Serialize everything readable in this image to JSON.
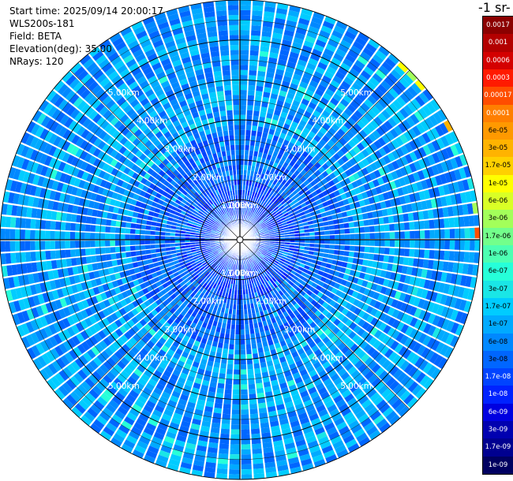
{
  "info": {
    "start_time": "Start time: 2025/09/14 20:00:17",
    "instrument": "WLS200s-181",
    "field": "Field: BETA",
    "elevation": "Elevation(deg): 35.00",
    "nrays": "NRays: 120"
  },
  "colorbar": {
    "title": "-1 sr-",
    "labels": [
      "0.0017",
      "0.001",
      "0.0006",
      "0.0003",
      "0.00017",
      "0.0001",
      "6e-05",
      "3e-05",
      "1.7e-05",
      "1e-05",
      "6e-06",
      "3e-06",
      "1.7e-06",
      "1e-06",
      "6e-07",
      "3e-07",
      "1.7e-07",
      "1e-07",
      "6e-08",
      "3e-08",
      "1.7e-08",
      "1e-08",
      "6e-09",
      "3e-09",
      "1.7e-09",
      "1e-09"
    ],
    "colors": [
      "#8b0000",
      "#b30000",
      "#d40000",
      "#ff1a00",
      "#ff4d00",
      "#ff7f00",
      "#ff9900",
      "#ffb300",
      "#ffd000",
      "#ffff00",
      "#d9ff26",
      "#a3ff5a",
      "#73ff8b",
      "#4dffb2",
      "#26ffd9",
      "#1ae6e6",
      "#00ccff",
      "#00aaff",
      "#0088ff",
      "#0066ff",
      "#0044ff",
      "#0022ff",
      "#0000e0",
      "#0000b0",
      "#000090",
      "#000060"
    ]
  },
  "chart_data": {
    "type": "heatmap",
    "projection": "polar PPI",
    "field": "BETA",
    "nrays": 120,
    "elevation_deg": 35.0,
    "range_unit": "km",
    "range_max_km": 6.0,
    "range_rings_km": [
      1,
      2,
      3,
      4,
      5
    ],
    "ring_labels": [
      "1.00km",
      "2.00km",
      "3.00km",
      "4.00km",
      "5.00km"
    ],
    "dominant_value_range": [
      "3e-08",
      "1e-07"
    ],
    "near_center_value_range": [
      "3e-09",
      "1e-08"
    ],
    "scale": "log"
  }
}
